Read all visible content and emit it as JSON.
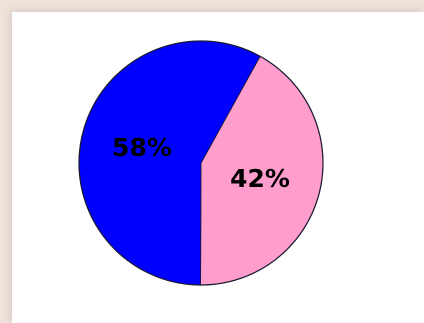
{
  "colors": {
    "background": "#efe3dc",
    "card": "#ffffff",
    "outline": "#1a1a33"
  },
  "chart_data": {
    "type": "pie",
    "slices": [
      {
        "value": 42,
        "label": "42%",
        "color": "#ff9dcc"
      },
      {
        "value": 58,
        "label": "58%",
        "color": "#0000ff"
      }
    ]
  }
}
